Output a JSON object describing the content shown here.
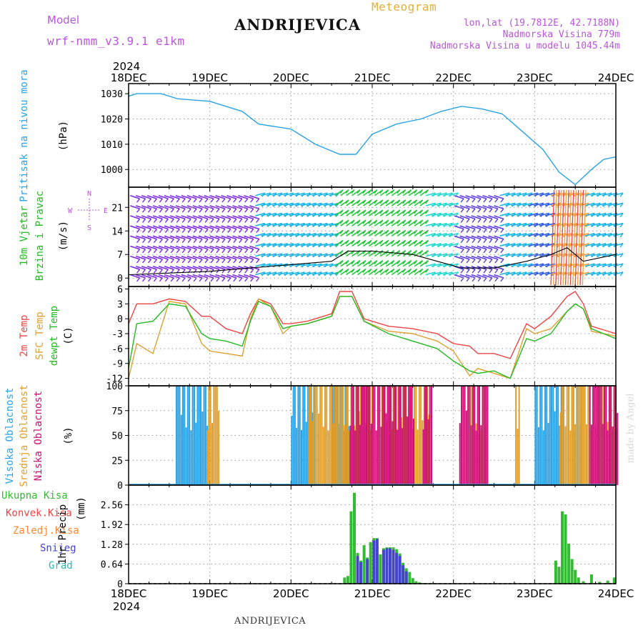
{
  "header": {
    "model_label": "Model",
    "model_name": "wrf-nmm_v3.9.1 e1km",
    "title": "ANDRIJEVICA",
    "subtitle": "Meteogram",
    "lonlat": "lon,lat (19.7812E, 42.7188N)",
    "altitude": "Nadmorska Visina 779m",
    "model_altitude": "Nadmorska Visina u modelu 1045.44m",
    "watermark": "made by Angel",
    "footer": "ANDRIJEVICA"
  },
  "time_axis": {
    "year": "2024",
    "labels": [
      "18DEC",
      "19DEC",
      "20DEC",
      "21DEC",
      "22DEC",
      "23DEC",
      "24DEC"
    ]
  },
  "colors": {
    "pressure": "#2aa3e6",
    "wind_label": "#22bb22",
    "temp2m": "#ee4444",
    "sfc_temp": "#e0a030",
    "dewpt": "#22bb22",
    "cloud_high": "#2aa3e6",
    "cloud_mid": "#e0a030",
    "cloud_low": "#cc1177",
    "precip_total": "#33bb33",
    "precip_conv": "#ee4444",
    "precip_frozen": "#ff8833",
    "precip_snow": "#4444cc",
    "precip_graupel": "#22bbbb",
    "compass": "#bb55dd"
  },
  "chart_data": [
    {
      "type": "line",
      "ylabel": "Pritisak na nivou mora",
      "unit": "(hPa)",
      "ylim": [
        993,
        1034
      ],
      "yticks": [
        1000,
        1010,
        1020,
        1030
      ],
      "x_days": [
        0,
        0.1,
        0.4,
        0.6,
        1.0,
        1.4,
        1.6,
        2.0,
        2.3,
        2.6,
        2.8,
        3.0,
        3.3,
        3.6,
        3.85,
        4.1,
        4.35,
        4.6,
        4.85,
        5.1,
        5.3,
        5.5,
        5.7,
        5.85,
        6.0
      ],
      "values": [
        1029,
        1030,
        1030,
        1028,
        1027,
        1023,
        1018,
        1016,
        1010,
        1006,
        1006,
        1014,
        1018,
        1020,
        1023,
        1025,
        1024,
        1022,
        1015,
        1008,
        999,
        994,
        1000,
        1004,
        1005
      ]
    },
    {
      "type": "line",
      "ylabel": "10m Vjetar Brzina i Pravac",
      "unit": "(m/s)",
      "ylim": [
        -2.5,
        27
      ],
      "yticks": [
        0,
        7,
        14,
        21
      ],
      "compass": {
        "n": "N",
        "s": "S",
        "e": "E",
        "w": "W"
      },
      "series": [
        {
          "name": "speed",
          "x_days": [
            0,
            0.5,
            1.0,
            1.5,
            2.0,
            2.5,
            2.7,
            3.0,
            3.5,
            3.8,
            4.1,
            4.5,
            4.9,
            5.2,
            5.4,
            5.6,
            6.0
          ],
          "values": [
            1,
            1.5,
            2,
            3,
            4,
            5,
            8,
            8,
            7,
            5,
            3,
            3,
            5,
            7,
            9,
            5,
            7
          ]
        }
      ],
      "barb_rows": [
        1,
        3.5,
        6.5,
        9.5,
        12.5,
        15.5,
        18.5,
        21.5,
        24.5
      ]
    },
    {
      "type": "line",
      "ylabel": "2m Temp / SFC Temp / dewpt Temp",
      "unit": "(C)",
      "ylim": [
        -13.5,
        6.5
      ],
      "yticks": [
        -12,
        -9,
        -6,
        -3,
        0,
        3,
        6
      ],
      "series": [
        {
          "name": "2m Temp",
          "x_days": [
            0,
            0.1,
            0.3,
            0.5,
            0.7,
            0.9,
            1.0,
            1.2,
            1.4,
            1.5,
            1.6,
            1.75,
            1.9,
            2.0,
            2.2,
            2.4,
            2.5,
            2.6,
            2.75,
            2.9,
            3.2,
            3.5,
            3.8,
            4.0,
            4.2,
            4.3,
            4.5,
            4.7,
            4.9,
            5.0,
            5.2,
            5.4,
            5.5,
            5.6,
            5.7,
            6.0
          ],
          "values": [
            -1,
            3,
            3,
            4,
            3.5,
            0.5,
            0.5,
            -2,
            -3,
            1,
            4,
            3,
            -1,
            -1,
            -0.5,
            0.5,
            1,
            5.5,
            5.5,
            0,
            -1.5,
            -2,
            -3,
            -5,
            -5.5,
            -7,
            -7,
            -8,
            -1,
            -2,
            0.5,
            4.5,
            5.5,
            3,
            -1.5,
            -3
          ]
        },
        {
          "name": "SFC Temp",
          "x_days": [
            0,
            0.1,
            0.3,
            0.5,
            0.7,
            0.9,
            1.0,
            1.2,
            1.4,
            1.5,
            1.6,
            1.75,
            1.9,
            2.0,
            2.2,
            2.4,
            2.5,
            2.6,
            2.75,
            2.9,
            3.2,
            3.5,
            3.8,
            4.0,
            4.2,
            4.3,
            4.5,
            4.7,
            4.9,
            5.0,
            5.2,
            5.4,
            5.5,
            5.6,
            5.7,
            6.0
          ],
          "values": [
            -12,
            -5,
            -7,
            3.5,
            3,
            -5,
            -6.5,
            -7,
            -7.5,
            0,
            4,
            2.5,
            -3,
            -1.5,
            -1,
            0,
            0.5,
            4.5,
            4.5,
            -0.5,
            -2.5,
            -3,
            -4.5,
            -6.5,
            -11.5,
            -10,
            -11,
            -12,
            -2,
            -3,
            -2,
            1.5,
            3,
            2,
            -2.5,
            -3.5
          ]
        },
        {
          "name": "dewpt Temp",
          "x_days": [
            0,
            0.1,
            0.3,
            0.5,
            0.7,
            0.9,
            1.0,
            1.2,
            1.4,
            1.5,
            1.6,
            1.75,
            1.9,
            2.0,
            2.2,
            2.4,
            2.5,
            2.6,
            2.75,
            2.9,
            3.2,
            3.5,
            3.8,
            4.0,
            4.2,
            4.3,
            4.5,
            4.7,
            4.9,
            5.0,
            5.2,
            5.4,
            5.5,
            5.6,
            5.7,
            6.0
          ],
          "values": [
            -10,
            -1,
            -0.5,
            3,
            2.5,
            -3,
            -4,
            -4.5,
            -5.5,
            -0.5,
            3.5,
            2.5,
            -2,
            -1.5,
            -1,
            0,
            0.5,
            4.5,
            4.5,
            -0.5,
            -3,
            -4.5,
            -6,
            -8.5,
            -10.5,
            -11,
            -10.5,
            -12,
            -4,
            -4.5,
            -3,
            1.5,
            3,
            2,
            -2,
            -4
          ]
        }
      ]
    },
    {
      "type": "bar",
      "ylabel": "Visoka Oblacnost / Srednja Oblacnost / Niska Oblacnost",
      "unit": "(%)",
      "ylim": [
        0,
        100
      ],
      "yticks": [
        0,
        25,
        50,
        75,
        100
      ],
      "series": [
        {
          "name": "Visoka Oblacnost",
          "spans": [
            [
              0.58,
              1.0
            ],
            [
              2.0,
              2.3
            ],
            [
              2.5,
              2.7
            ],
            [
              5.0,
              5.35
            ],
            [
              5.45,
              5.6
            ]
          ],
          "value": 100
        },
        {
          "name": "Srednja Oblacnost",
          "spans": [
            [
              0.95,
              1.1
            ],
            [
              2.2,
              3.0
            ],
            [
              3.1,
              3.7
            ],
            [
              4.2,
              4.4
            ],
            [
              4.75,
              4.8
            ],
            [
              5.3,
              6.0
            ]
          ],
          "value": 100
        },
        {
          "name": "Niska Oblacnost",
          "spans": [
            [
              2.7,
              3.5
            ],
            [
              3.6,
              3.7
            ],
            [
              4.05,
              4.4
            ],
            [
              5.65,
              6.0
            ]
          ],
          "value": 100
        }
      ]
    },
    {
      "type": "bar",
      "ylabel": "1hr Precip",
      "unit": "(mm)",
      "ylim": [
        0,
        3.2
      ],
      "yticks": [
        0,
        0.64,
        1.28,
        1.92,
        2.56
      ],
      "series": [
        {
          "name": "Ukupna Kisa",
          "x_days": [
            2.66,
            2.7,
            2.74,
            2.78,
            2.82,
            2.86,
            2.9,
            2.94,
            2.98,
            3.02,
            3.06,
            3.1,
            3.14,
            3.18,
            3.22,
            3.26,
            3.3,
            3.34,
            3.38,
            3.42,
            3.46,
            3.5,
            3.54,
            3.58,
            3.62,
            3.66,
            3.7,
            5.26,
            5.3,
            5.34,
            5.38,
            5.42,
            5.46,
            5.5,
            5.54,
            5.6,
            5.7,
            5.8,
            5.9,
            5.98
          ],
          "values": [
            0.2,
            0.25,
            2.35,
            2.95,
            1.0,
            0.75,
            1.25,
            0.85,
            1.35,
            1.48,
            1.48,
            0.95,
            1.15,
            1.18,
            1.18,
            1.18,
            1.12,
            0.98,
            0.68,
            0.5,
            0.38,
            0.18,
            0.08,
            0.04,
            0.02,
            0.02,
            0.01,
            0.75,
            0.55,
            2.35,
            2.25,
            1.3,
            0.8,
            0.45,
            0.2,
            0.08,
            0.3,
            0.06,
            0.1,
            0.2
          ]
        },
        {
          "name": "Konvek.Kisa",
          "x_days": [],
          "values": []
        },
        {
          "name": "Zaledj.Kisa",
          "x_days": [],
          "values": []
        },
        {
          "name": "Snijeg",
          "x_days": [
            2.82,
            2.86,
            2.94,
            3.02,
            3.06,
            3.14,
            3.18,
            3.22,
            3.26,
            3.3,
            3.34,
            3.38,
            3.42
          ],
          "values": [
            0.9,
            0.7,
            0.8,
            1.4,
            1.45,
            1.1,
            1.15,
            1.15,
            1.1,
            1.0,
            0.9,
            0.6,
            0.4
          ]
        },
        {
          "name": "Grad",
          "x_days": [],
          "values": []
        }
      ]
    }
  ]
}
